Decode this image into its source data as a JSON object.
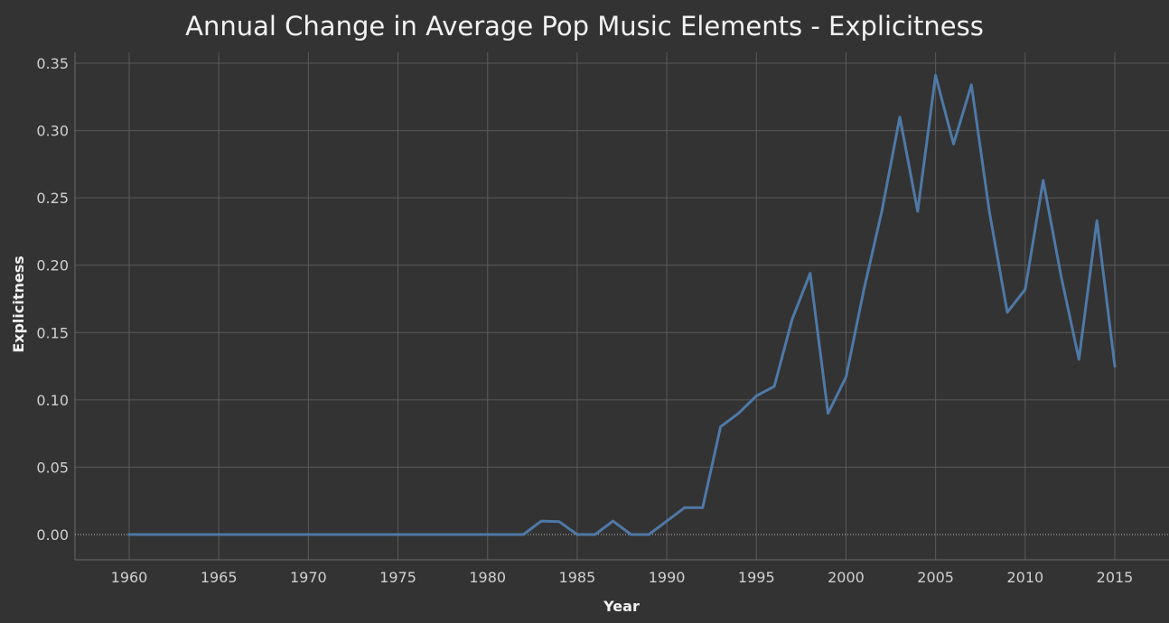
{
  "chart_data": {
    "type": "line",
    "title": "Annual Change in Average Pop Music Elements - Explicitness",
    "xlabel": "Year",
    "ylabel": "Explicitness",
    "xlim": [
      1960,
      2015
    ],
    "ylim": [
      0,
      0.35
    ],
    "x_ticks": [
      1960,
      1965,
      1970,
      1975,
      1980,
      1985,
      1990,
      1995,
      2000,
      2005,
      2010,
      2015
    ],
    "y_ticks": [
      "0.00",
      "0.05",
      "0.10",
      "0.15",
      "0.20",
      "0.25",
      "0.30",
      "0.35"
    ],
    "y_tick_values": [
      0,
      0.05,
      0.1,
      0.15,
      0.2,
      0.25,
      0.3,
      0.35
    ],
    "grid": true,
    "colors": {
      "background": "#333333",
      "line": "#4e79a7"
    },
    "series": [
      {
        "x": [
          1960,
          1961,
          1962,
          1963,
          1964,
          1965,
          1966,
          1967,
          1968,
          1969,
          1970,
          1971,
          1972,
          1973,
          1974,
          1975,
          1976,
          1977,
          1978,
          1979,
          1980,
          1981,
          1982,
          1983,
          1984,
          1985,
          1986,
          1987,
          1988,
          1989,
          1990,
          1991,
          1992,
          1993,
          1994,
          1995,
          1996,
          1997,
          1998,
          1999,
          2000,
          2001,
          2002,
          2003,
          2004,
          2005,
          2006,
          2007,
          2008,
          2009,
          2010,
          2011,
          2012,
          2013,
          2014,
          2015
        ],
        "values": [
          0,
          0,
          0,
          0,
          0,
          0,
          0,
          0,
          0,
          0,
          0,
          0,
          0,
          0,
          0,
          0,
          0,
          0,
          0,
          0,
          0,
          0,
          0,
          0.01,
          0.0095,
          0,
          0,
          0.01,
          0,
          0,
          0.01,
          0.02,
          0.02,
          0.08,
          0.09,
          0.103,
          0.11,
          0.16,
          0.194,
          0.09,
          0.117,
          0.182,
          0.24,
          0.31,
          0.24,
          0.341,
          0.29,
          0.334,
          0.24,
          0.165,
          0.182,
          0.263,
          0.192,
          0.13,
          0.233,
          0.125
        ]
      }
    ]
  }
}
